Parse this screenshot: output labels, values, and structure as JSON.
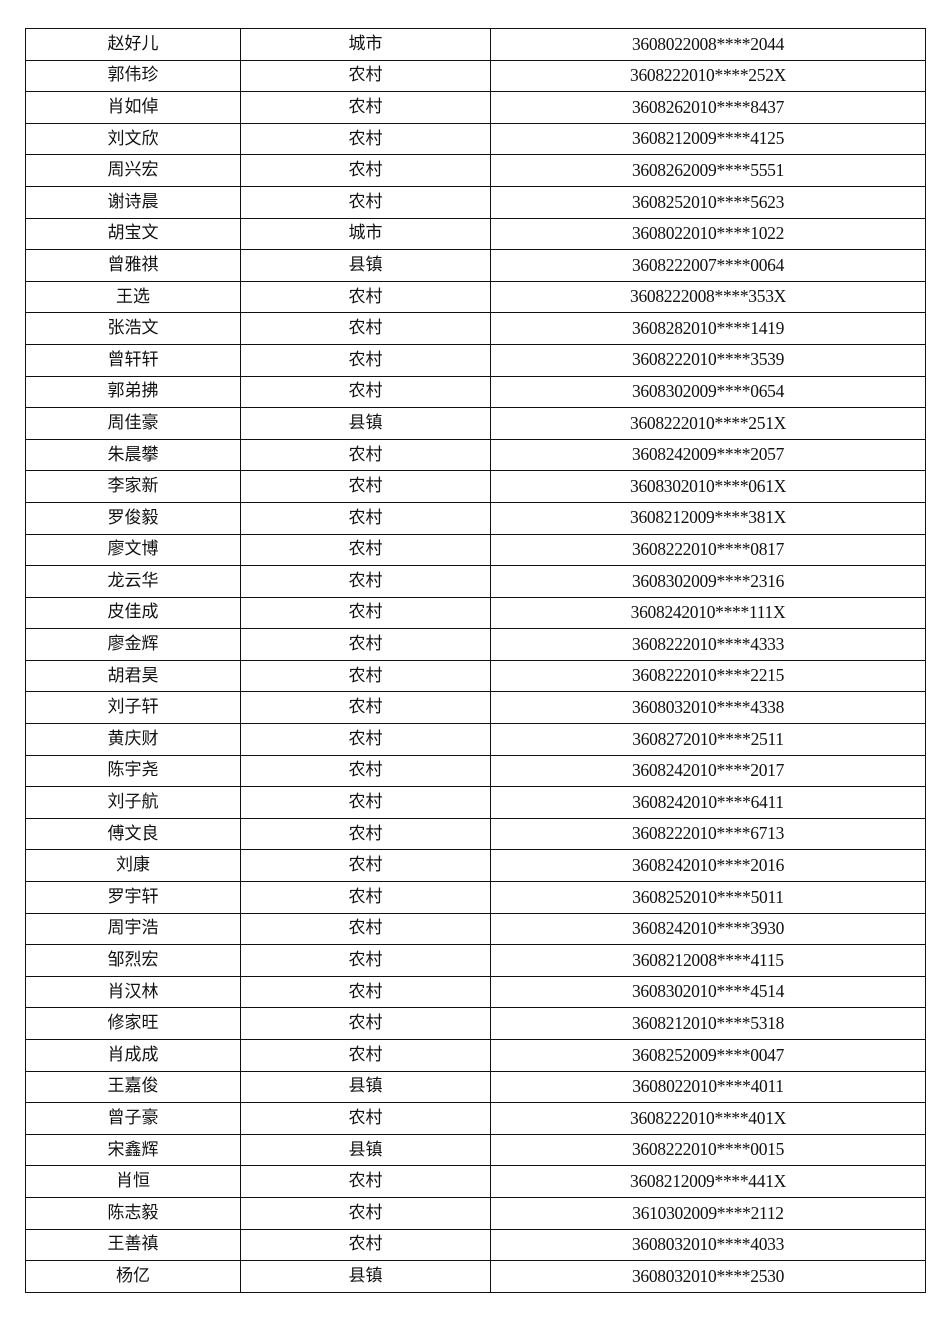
{
  "rows": [
    {
      "name": "赵好儿",
      "area": "城市",
      "id": "3608022008****2044"
    },
    {
      "name": "郭伟珍",
      "area": "农村",
      "id": "3608222010****252X"
    },
    {
      "name": "肖如倬",
      "area": "农村",
      "id": "3608262010****8437"
    },
    {
      "name": "刘文欣",
      "area": "农村",
      "id": "3608212009****4125"
    },
    {
      "name": "周兴宏",
      "area": "农村",
      "id": "3608262009****5551"
    },
    {
      "name": "谢诗晨",
      "area": "农村",
      "id": "3608252010****5623"
    },
    {
      "name": "胡宝文",
      "area": "城市",
      "id": "3608022010****1022"
    },
    {
      "name": "曾雅祺",
      "area": "县镇",
      "id": "3608222007****0064"
    },
    {
      "name": "王选",
      "area": "农村",
      "id": "3608222008****353X"
    },
    {
      "name": "张浩文",
      "area": "农村",
      "id": "3608282010****1419"
    },
    {
      "name": "曾轩轩",
      "area": "农村",
      "id": "3608222010****3539"
    },
    {
      "name": "郭弟拂",
      "area": "农村",
      "id": "3608302009****0654"
    },
    {
      "name": "周佳豪",
      "area": "县镇",
      "id": "3608222010****251X"
    },
    {
      "name": "朱晨攀",
      "area": "农村",
      "id": "3608242009****2057"
    },
    {
      "name": "李家新",
      "area": "农村",
      "id": "3608302010****061X"
    },
    {
      "name": "罗俊毅",
      "area": "农村",
      "id": "3608212009****381X"
    },
    {
      "name": "廖文博",
      "area": "农村",
      "id": "3608222010****0817"
    },
    {
      "name": "龙云华",
      "area": "农村",
      "id": "3608302009****2316"
    },
    {
      "name": "皮佳成",
      "area": "农村",
      "id": "3608242010****111X"
    },
    {
      "name": "廖金辉",
      "area": "农村",
      "id": "3608222010****4333"
    },
    {
      "name": "胡君昊",
      "area": "农村",
      "id": "3608222010****2215"
    },
    {
      "name": "刘子轩",
      "area": "农村",
      "id": "3608032010****4338"
    },
    {
      "name": "黄庆财",
      "area": "农村",
      "id": "3608272010****2511"
    },
    {
      "name": "陈宇尧",
      "area": "农村",
      "id": "3608242010****2017"
    },
    {
      "name": "刘子航",
      "area": "农村",
      "id": "3608242010****6411"
    },
    {
      "name": "傅文良",
      "area": "农村",
      "id": "3608222010****6713"
    },
    {
      "name": "刘康",
      "area": "农村",
      "id": "3608242010****2016"
    },
    {
      "name": "罗宇轩",
      "area": "农村",
      "id": "3608252010****5011"
    },
    {
      "name": "周宇浩",
      "area": "农村",
      "id": "3608242010****3930"
    },
    {
      "name": "邹烈宏",
      "area": "农村",
      "id": "3608212008****4115"
    },
    {
      "name": "肖汉林",
      "area": "农村",
      "id": "3608302010****4514"
    },
    {
      "name": "修家旺",
      "area": "农村",
      "id": "3608212010****5318"
    },
    {
      "name": "肖成成",
      "area": "农村",
      "id": "3608252009****0047"
    },
    {
      "name": "王嘉俊",
      "area": "县镇",
      "id": "3608022010****4011"
    },
    {
      "name": "曾子豪",
      "area": "农村",
      "id": "3608222010****401X"
    },
    {
      "name": "宋鑫辉",
      "area": "县镇",
      "id": "3608222010****0015"
    },
    {
      "name": "肖恒",
      "area": "农村",
      "id": "3608212009****441X"
    },
    {
      "name": "陈志毅",
      "area": "农村",
      "id": "3610302009****2112"
    },
    {
      "name": "王善禛",
      "area": "农村",
      "id": "3608032010****4033"
    },
    {
      "name": "杨亿",
      "area": "县镇",
      "id": "3608032010****2530"
    }
  ]
}
